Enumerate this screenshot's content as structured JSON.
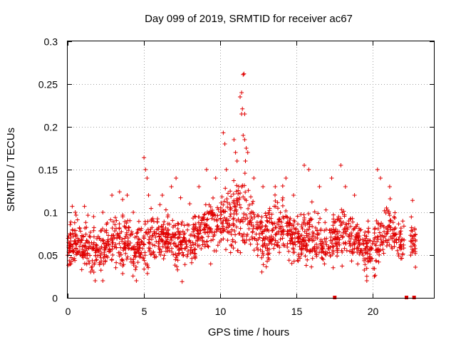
{
  "chart_data": {
    "type": "scatter",
    "title": "Day 099 of 2019, SRMTID for receiver ac67",
    "xlabel": "GPS time / hours",
    "ylabel": "SRMTID / TECUs",
    "xlim": [
      0,
      24
    ],
    "ylim": [
      0,
      0.3
    ],
    "xticks": [
      0,
      5,
      10,
      15,
      20
    ],
    "xtick_labels": [
      "0",
      "5",
      "10",
      "15",
      "20"
    ],
    "yticks": [
      0,
      0.05,
      0.1,
      0.15,
      0.2,
      0.25,
      0.3
    ],
    "ytick_labels": [
      "0",
      "0.05",
      "0.1",
      "0.15",
      "0.2",
      "0.25",
      "0.3"
    ],
    "grid": true,
    "marker": "plus",
    "color": "#e00000",
    "series": [
      {
        "name": "SRMTID",
        "trend": [
          [
            0.0,
            0.062,
            0.012
          ],
          [
            0.5,
            0.065,
            0.013
          ],
          [
            1.0,
            0.064,
            0.012
          ],
          [
            1.5,
            0.06,
            0.012
          ],
          [
            2.0,
            0.058,
            0.013
          ],
          [
            2.5,
            0.06,
            0.013
          ],
          [
            3.0,
            0.068,
            0.015
          ],
          [
            3.5,
            0.068,
            0.014
          ],
          [
            4.0,
            0.064,
            0.014
          ],
          [
            4.5,
            0.058,
            0.013
          ],
          [
            5.0,
            0.068,
            0.017
          ],
          [
            5.5,
            0.07,
            0.014
          ],
          [
            6.0,
            0.072,
            0.013
          ],
          [
            6.5,
            0.07,
            0.013
          ],
          [
            7.0,
            0.066,
            0.013
          ],
          [
            7.5,
            0.062,
            0.012
          ],
          [
            8.0,
            0.062,
            0.013
          ],
          [
            8.5,
            0.07,
            0.014
          ],
          [
            9.0,
            0.082,
            0.015
          ],
          [
            9.5,
            0.086,
            0.014
          ],
          [
            10.0,
            0.09,
            0.016
          ],
          [
            10.5,
            0.09,
            0.018
          ],
          [
            11.0,
            0.092,
            0.02
          ],
          [
            11.5,
            0.095,
            0.022
          ],
          [
            12.0,
            0.085,
            0.018
          ],
          [
            12.5,
            0.075,
            0.015
          ],
          [
            13.0,
            0.07,
            0.014
          ],
          [
            13.5,
            0.078,
            0.015
          ],
          [
            14.0,
            0.085,
            0.015
          ],
          [
            14.5,
            0.08,
            0.014
          ],
          [
            15.0,
            0.068,
            0.013
          ],
          [
            15.5,
            0.07,
            0.014
          ],
          [
            16.0,
            0.07,
            0.015
          ],
          [
            16.5,
            0.066,
            0.014
          ],
          [
            17.0,
            0.062,
            0.013
          ],
          [
            17.5,
            0.07,
            0.014
          ],
          [
            18.0,
            0.076,
            0.015
          ],
          [
            18.5,
            0.07,
            0.014
          ],
          [
            19.0,
            0.064,
            0.014
          ],
          [
            19.5,
            0.058,
            0.013
          ],
          [
            20.0,
            0.055,
            0.013
          ],
          [
            20.5,
            0.07,
            0.014
          ],
          [
            21.0,
            0.082,
            0.015
          ],
          [
            21.5,
            0.075,
            0.014
          ],
          [
            22.0,
            0.062,
            0.012
          ],
          [
            22.8,
            0.068,
            0.013
          ]
        ],
        "outliers": [
          [
            0.3,
            0.107
          ],
          [
            0.5,
            0.1
          ],
          [
            1.1,
            0.107
          ],
          [
            1.7,
            0.095
          ],
          [
            2.3,
            0.1
          ],
          [
            2.9,
            0.12
          ],
          [
            3.4,
            0.124
          ],
          [
            3.6,
            0.115
          ],
          [
            3.9,
            0.12
          ],
          [
            4.3,
            0.1
          ],
          [
            5.0,
            0.164
          ],
          [
            5.1,
            0.15
          ],
          [
            5.2,
            0.14
          ],
          [
            5.3,
            0.12
          ],
          [
            6.2,
            0.12
          ],
          [
            6.8,
            0.13
          ],
          [
            7.1,
            0.14
          ],
          [
            7.4,
            0.117
          ],
          [
            8.0,
            0.11
          ],
          [
            8.6,
            0.13
          ],
          [
            9.1,
            0.15
          ],
          [
            9.7,
            0.14
          ],
          [
            10.2,
            0.193
          ],
          [
            10.3,
            0.18
          ],
          [
            10.4,
            0.15
          ],
          [
            10.9,
            0.185
          ],
          [
            11.0,
            0.17
          ],
          [
            11.1,
            0.16
          ],
          [
            11.3,
            0.235
          ],
          [
            11.4,
            0.24
          ],
          [
            11.45,
            0.221
          ],
          [
            11.5,
            0.261
          ],
          [
            11.55,
            0.262
          ],
          [
            11.6,
            0.215
          ],
          [
            11.4,
            0.215
          ],
          [
            11.5,
            0.19
          ],
          [
            11.6,
            0.185
          ],
          [
            11.7,
            0.175
          ],
          [
            11.8,
            0.17
          ],
          [
            11.65,
            0.16
          ],
          [
            12.2,
            0.14
          ],
          [
            12.8,
            0.13
          ],
          [
            13.6,
            0.13
          ],
          [
            14.3,
            0.14
          ],
          [
            14.8,
            0.12
          ],
          [
            15.5,
            0.155
          ],
          [
            15.8,
            0.15
          ],
          [
            16.5,
            0.13
          ],
          [
            17.3,
            0.14
          ],
          [
            17.9,
            0.155
          ],
          [
            18.2,
            0.13
          ],
          [
            18.8,
            0.12
          ],
          [
            20.3,
            0.15
          ],
          [
            20.5,
            0.14
          ],
          [
            21.1,
            0.13
          ],
          [
            22.6,
            0.114
          ],
          [
            1.8,
            0.02
          ],
          [
            2.3,
            0.02
          ],
          [
            4.5,
            0.02
          ],
          [
            7.5,
            0.019
          ],
          [
            13.2,
            0.045
          ],
          [
            19.6,
            0.02
          ],
          [
            20.1,
            0.025
          ]
        ],
        "zero_markers": [
          17.5,
          22.2,
          22.7
        ]
      }
    ]
  }
}
